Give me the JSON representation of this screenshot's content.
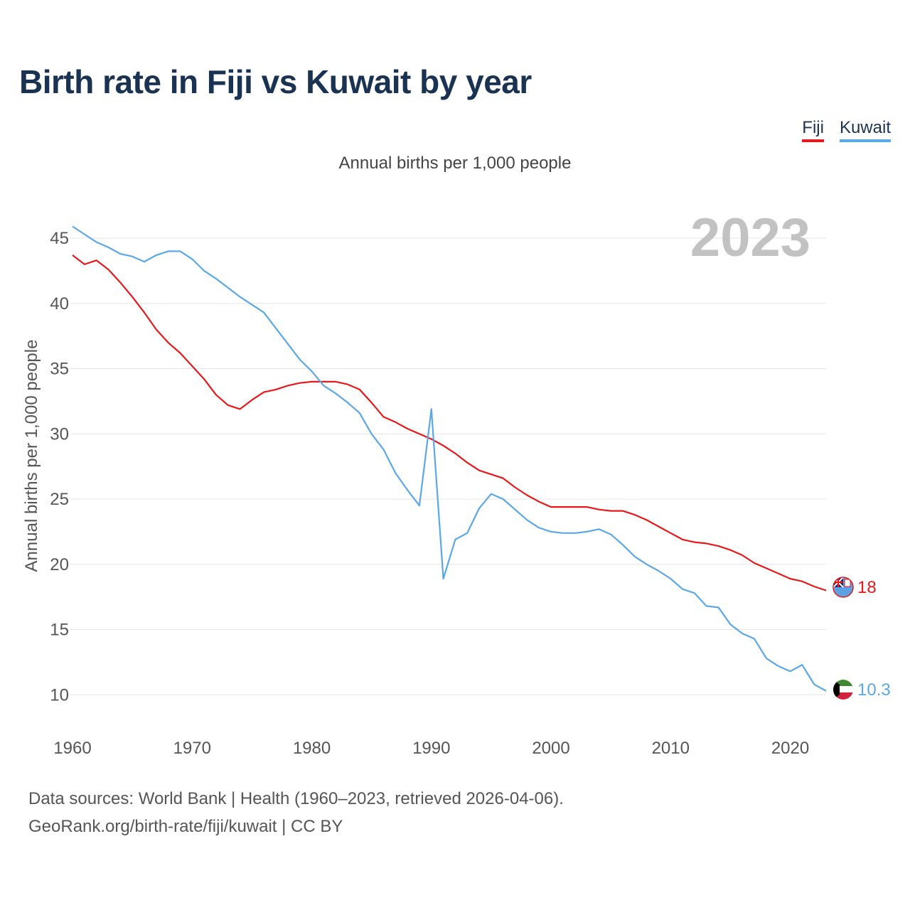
{
  "title": "Birth rate in Fiji vs Kuwait by year",
  "legend": [
    {
      "label": "Fiji",
      "color": "#e8191b"
    },
    {
      "label": "Kuwait",
      "color": "#5ba8e8"
    }
  ],
  "subtitle": "Annual births per 1,000 people",
  "year_badge": "2023",
  "footer": {
    "line1": "Data sources: World Bank | Health (1960–2023, retrieved 2026-04-06).",
    "line2": "GeoRank.org/birth-rate/fiji/kuwait | CC BY"
  },
  "chart_data": {
    "type": "line",
    "title": "Birth rate in Fiji vs Kuwait by year",
    "ylabel": "Annual births per 1,000 people",
    "xlabel": "",
    "xlim": [
      1960,
      2023
    ],
    "ylim": [
      8,
      48
    ],
    "x_ticks": [
      1960,
      1970,
      1980,
      1990,
      2000,
      2010,
      2020
    ],
    "y_ticks": [
      10,
      15,
      20,
      25,
      30,
      35,
      40,
      45
    ],
    "grid": true,
    "series": [
      {
        "name": "Fiji",
        "color": "#e8191b",
        "end_label": "18",
        "x": [
          1960,
          1961,
          1962,
          1963,
          1964,
          1965,
          1966,
          1967,
          1968,
          1969,
          1970,
          1971,
          1972,
          1973,
          1974,
          1975,
          1976,
          1977,
          1978,
          1979,
          1980,
          1981,
          1982,
          1983,
          1984,
          1985,
          1986,
          1987,
          1988,
          1989,
          1990,
          1991,
          1992,
          1993,
          1994,
          1995,
          1996,
          1997,
          1998,
          1999,
          2000,
          2001,
          2002,
          2003,
          2004,
          2005,
          2006,
          2007,
          2008,
          2009,
          2010,
          2011,
          2012,
          2013,
          2014,
          2015,
          2016,
          2017,
          2018,
          2019,
          2020,
          2021,
          2022,
          2023
        ],
        "values": [
          43.7,
          43.0,
          43.3,
          42.6,
          41.6,
          40.5,
          39.3,
          38.0,
          37.0,
          36.2,
          35.2,
          34.2,
          33.0,
          32.2,
          31.9,
          32.6,
          33.2,
          33.4,
          33.7,
          33.9,
          34.0,
          34.0,
          34.0,
          33.8,
          33.4,
          32.4,
          31.3,
          30.9,
          30.4,
          30.0,
          29.6,
          29.1,
          28.5,
          27.8,
          27.2,
          26.9,
          26.6,
          25.9,
          25.3,
          24.8,
          24.4,
          24.4,
          24.4,
          24.4,
          24.2,
          24.1,
          24.1,
          23.8,
          23.4,
          22.9,
          22.4,
          21.9,
          21.7,
          21.6,
          21.4,
          21.1,
          20.7,
          20.1,
          19.7,
          19.3,
          18.9,
          18.7,
          18.3,
          18.0
        ]
      },
      {
        "name": "Kuwait",
        "color": "#5ba8e8",
        "end_label": "10.3",
        "x": [
          1960,
          1961,
          1962,
          1963,
          1964,
          1965,
          1966,
          1967,
          1968,
          1969,
          1970,
          1971,
          1972,
          1973,
          1974,
          1975,
          1976,
          1977,
          1978,
          1979,
          1980,
          1981,
          1982,
          1983,
          1984,
          1985,
          1986,
          1987,
          1988,
          1989,
          1990,
          1991,
          1992,
          1993,
          1994,
          1995,
          1996,
          1997,
          1998,
          1999,
          2000,
          2001,
          2002,
          2003,
          2004,
          2005,
          2006,
          2007,
          2008,
          2009,
          2010,
          2011,
          2012,
          2013,
          2014,
          2015,
          2016,
          2017,
          2018,
          2019,
          2020,
          2021,
          2022,
          2023
        ],
        "values": [
          45.9,
          45.3,
          44.7,
          44.3,
          43.8,
          43.6,
          43.2,
          43.7,
          44.0,
          44.0,
          43.4,
          42.5,
          41.9,
          41.2,
          40.5,
          39.9,
          39.3,
          38.1,
          36.9,
          35.7,
          34.8,
          33.7,
          33.1,
          32.4,
          31.6,
          30.0,
          28.8,
          27.0,
          25.7,
          24.5,
          31.9,
          18.9,
          21.9,
          22.4,
          24.3,
          25.4,
          25.0,
          24.2,
          23.4,
          22.8,
          22.5,
          22.4,
          22.4,
          22.5,
          22.7,
          22.3,
          21.5,
          20.6,
          20.0,
          19.5,
          18.9,
          18.1,
          17.8,
          16.8,
          16.7,
          15.4,
          14.7,
          14.3,
          12.8,
          12.2,
          11.8,
          12.3,
          10.8,
          10.3
        ]
      }
    ]
  }
}
